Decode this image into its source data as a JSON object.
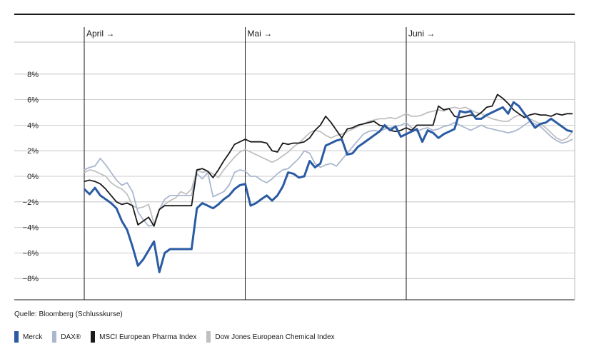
{
  "source": "Quelle: Bloomberg (Schlusskurse)",
  "chart_data": {
    "type": "line",
    "xlabel": "",
    "ylabel": "",
    "ylim": [
      -10,
      10
    ],
    "grid": true,
    "legend_position": "bottom",
    "y_ticks": [
      {
        "value": 8,
        "label": "8%"
      },
      {
        "value": 6,
        "label": "6%"
      },
      {
        "value": 4,
        "label": "4%"
      },
      {
        "value": 2,
        "label": "2%"
      },
      {
        "value": 0,
        "label": "0%"
      },
      {
        "value": -2,
        "label": "−2%"
      },
      {
        "value": -4,
        "label": "−4%"
      },
      {
        "value": -6,
        "label": "−6%"
      },
      {
        "value": -8,
        "label": "−8%"
      }
    ],
    "x_count": 92,
    "months": [
      {
        "label": "April →",
        "index": 0
      },
      {
        "label": "Mai →",
        "index": 30
      },
      {
        "label": "Juni →",
        "index": 60
      }
    ],
    "series": [
      {
        "name": "Dow Jones European Chemical Index",
        "color": "#c0c0c0",
        "values": [
          0.3,
          0.5,
          0.4,
          0.2,
          0.0,
          -0.5,
          -0.8,
          -1.0,
          -1.4,
          -2.3,
          -2.5,
          -2.4,
          -2.2,
          -3.7,
          -2.6,
          -2.2,
          -1.9,
          -1.7,
          -1.2,
          -1.4,
          -1.0,
          0.5,
          0.3,
          0.4,
          0.2,
          -0.1,
          0.5,
          1.0,
          1.5,
          1.9,
          2.1,
          1.9,
          1.7,
          1.5,
          1.3,
          1.1,
          1.3,
          1.6,
          1.9,
          2.3,
          2.6,
          3.0,
          3.4,
          3.6,
          3.5,
          3.2,
          3.0,
          3.2,
          3.3,
          3.5,
          3.7,
          3.9,
          4.1,
          4.3,
          4.4,
          4.5,
          4.5,
          4.6,
          4.5,
          4.7,
          4.9,
          4.7,
          4.7,
          4.8,
          5.0,
          5.1,
          5.2,
          5.1,
          5.3,
          5.4,
          5.3,
          5.4,
          5.2,
          5.0,
          4.9,
          4.7,
          4.5,
          4.4,
          4.3,
          4.3,
          4.6,
          4.8,
          4.7,
          4.5,
          4.3,
          4.1,
          3.8,
          3.4,
          3.0,
          2.8,
          3.0,
          3.5
        ]
      },
      {
        "name": "DAX®",
        "color": "#aab7cf",
        "values": [
          0.5,
          0.7,
          0.8,
          1.4,
          0.9,
          0.3,
          -0.3,
          -0.7,
          -0.5,
          -1.2,
          -2.8,
          -3.4,
          -3.9,
          -3.8,
          -2.6,
          -1.8,
          -1.5,
          -1.5,
          -1.5,
          -1.5,
          -1.5,
          0.2,
          -0.2,
          0.3,
          -1.6,
          -1.4,
          -1.2,
          -0.7,
          0.3,
          0.5,
          0.4,
          0.0,
          0.0,
          -0.3,
          -0.5,
          -0.2,
          0.2,
          0.5,
          0.6,
          1.0,
          1.4,
          2.0,
          1.8,
          1.0,
          0.7,
          0.9,
          1.0,
          0.8,
          1.3,
          1.8,
          2.3,
          2.8,
          3.3,
          3.5,
          3.6,
          3.5,
          3.7,
          3.8,
          3.9,
          4.0,
          4.2,
          3.8,
          3.5,
          3.7,
          3.8,
          3.6,
          3.7,
          3.9,
          4.0,
          4.2,
          4.0,
          3.8,
          3.6,
          3.8,
          4.0,
          3.8,
          3.7,
          3.6,
          3.5,
          3.4,
          3.5,
          3.7,
          4.0,
          4.3,
          4.1,
          3.9,
          3.5,
          3.1,
          2.8,
          2.6,
          2.7,
          2.9
        ]
      },
      {
        "name": "MSCI European Pharma Index",
        "color": "#1a1a1a",
        "values": [
          -0.4,
          -0.3,
          -0.4,
          -0.6,
          -1.0,
          -1.5,
          -2.0,
          -2.2,
          -2.1,
          -2.3,
          -3.8,
          -3.5,
          -3.2,
          -3.9,
          -2.6,
          -2.3,
          -2.3,
          -2.3,
          -2.3,
          -2.3,
          -2.3,
          0.5,
          0.6,
          0.4,
          -0.1,
          0.5,
          1.2,
          1.8,
          2.5,
          2.7,
          2.9,
          2.7,
          2.7,
          2.7,
          2.6,
          2.0,
          1.9,
          2.6,
          2.5,
          2.6,
          2.6,
          2.7,
          3.0,
          3.6,
          4.0,
          4.7,
          4.2,
          3.6,
          3.0,
          3.7,
          3.8,
          4.0,
          4.1,
          4.2,
          4.3,
          4.0,
          3.9,
          3.6,
          3.5,
          3.6,
          3.8,
          3.6,
          4.0,
          4.0,
          4.0,
          4.0,
          5.5,
          5.2,
          5.3,
          4.7,
          4.6,
          4.7,
          4.8,
          4.7,
          5.0,
          5.4,
          5.5,
          6.4,
          6.1,
          5.7,
          5.2,
          4.9,
          4.6,
          4.8,
          4.9,
          4.8,
          4.8,
          4.7,
          4.9,
          4.8,
          4.9,
          4.9
        ]
      },
      {
        "name": "Merck",
        "color": "#2a5ba3",
        "values": [
          -1.0,
          -1.4,
          -0.9,
          -1.5,
          -1.8,
          -2.1,
          -2.5,
          -3.5,
          -4.2,
          -5.5,
          -7.0,
          -6.5,
          -5.8,
          -5.1,
          -7.5,
          -6.0,
          -5.7,
          -5.7,
          -5.7,
          -5.7,
          -5.7,
          -2.5,
          -2.1,
          -2.3,
          -2.5,
          -2.2,
          -1.8,
          -1.5,
          -1.0,
          -0.7,
          -0.6,
          -2.3,
          -2.1,
          -1.8,
          -1.5,
          -1.9,
          -1.5,
          -0.8,
          0.3,
          0.2,
          -0.1,
          0.0,
          1.2,
          0.7,
          1.0,
          2.4,
          2.6,
          2.8,
          2.9,
          1.7,
          1.8,
          2.3,
          2.6,
          2.9,
          3.2,
          3.5,
          4.0,
          3.6,
          3.9,
          3.1,
          3.3,
          3.5,
          3.7,
          2.7,
          3.6,
          3.4,
          3.0,
          3.3,
          3.5,
          3.7,
          5.1,
          5.0,
          5.1,
          4.5,
          4.5,
          4.8,
          5.0,
          5.2,
          5.4,
          4.9,
          5.8,
          5.5,
          4.9,
          4.4,
          3.8,
          4.1,
          4.2,
          4.5,
          4.2,
          3.9,
          3.6,
          3.5
        ]
      }
    ]
  }
}
